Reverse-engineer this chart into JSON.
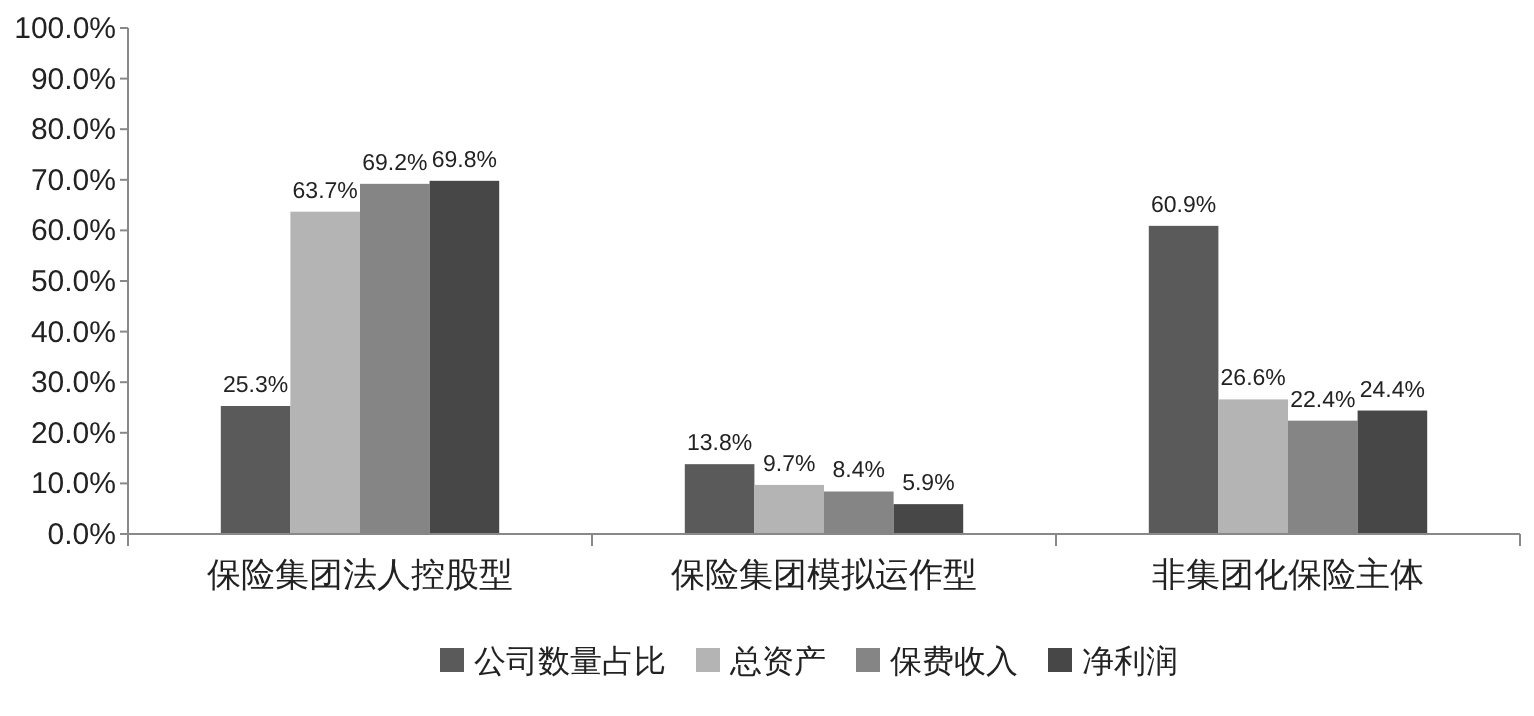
{
  "chart_data": {
    "type": "bar",
    "categories": [
      "保险集团法人控股型",
      "保险集团模拟运作型",
      "非集团化保险主体"
    ],
    "series": [
      {
        "name": "公司数量占比",
        "color": "#5a5a5a",
        "values": [
          25.3,
          13.8,
          60.9
        ],
        "value_labels": [
          "25.3%",
          "13.8%",
          "60.9%"
        ]
      },
      {
        "name": "总资产",
        "color": "#b4b4b4",
        "values": [
          63.7,
          9.7,
          26.6
        ],
        "value_labels": [
          "63.7%",
          "9.7%",
          "26.6%"
        ]
      },
      {
        "name": "保费收入",
        "color": "#858585",
        "values": [
          69.2,
          8.4,
          22.4
        ],
        "value_labels": [
          "69.2%",
          "8.4%",
          "22.4%"
        ]
      },
      {
        "name": "净利润",
        "color": "#474747",
        "values": [
          69.8,
          5.9,
          24.4
        ],
        "value_labels": [
          "69.8%",
          "5.9%",
          "24.4%"
        ]
      }
    ],
    "ylim": [
      0,
      100
    ],
    "yticks": [
      {
        "value": 0,
        "label": "0.0%"
      },
      {
        "value": 10,
        "label": "10.0%"
      },
      {
        "value": 20,
        "label": "20.0%"
      },
      {
        "value": 30,
        "label": "30.0%"
      },
      {
        "value": 40,
        "label": "40.0%"
      },
      {
        "value": 50,
        "label": "50.0%"
      },
      {
        "value": 60,
        "label": "60.0%"
      },
      {
        "value": 70,
        "label": "70.0%"
      },
      {
        "value": 80,
        "label": "80.0%"
      },
      {
        "value": 90,
        "label": "90.0%"
      },
      {
        "value": 100,
        "label": "100.0%"
      }
    ],
    "grid": false,
    "legend": "bottom"
  }
}
